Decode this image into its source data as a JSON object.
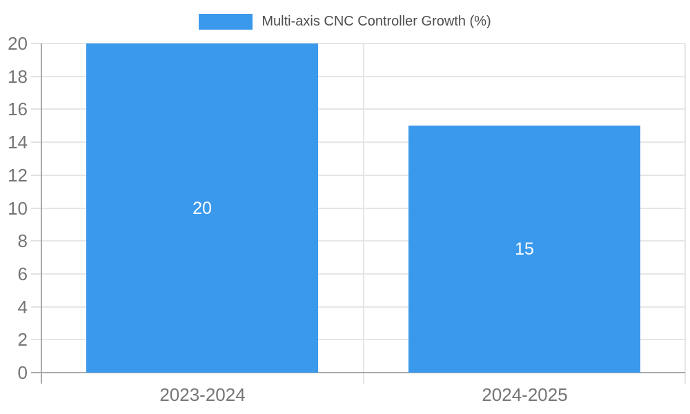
{
  "chart_data": {
    "type": "bar",
    "title": "Multi-axis CNC Controller Growth (%)",
    "legend": {
      "label": "Multi-axis CNC Controller Growth (%)",
      "position": "top-center",
      "swatch": "filled-rectangle"
    },
    "categories": [
      "2023-2024",
      "2024-2025"
    ],
    "values": [
      20,
      15
    ],
    "value_labels": [
      "20",
      "15"
    ],
    "value_label_position": "inside-center",
    "xlabel": "",
    "ylabel": "",
    "ylim": [
      0,
      20
    ],
    "ytick_step": 2,
    "yticks": [
      0,
      2,
      4,
      6,
      8,
      10,
      12,
      14,
      16,
      18,
      20
    ],
    "grid": true,
    "colors": {
      "bar": "#3b99ec",
      "axis": "#a9a9a9",
      "gridline": "#e6e6e6",
      "tick_mark": "#e2e2e2",
      "tick_label": "#757575",
      "category_label": "#757575",
      "legend_text": "#4d4d4d",
      "value_label": "#ffffff",
      "background": "#ffffff"
    }
  }
}
